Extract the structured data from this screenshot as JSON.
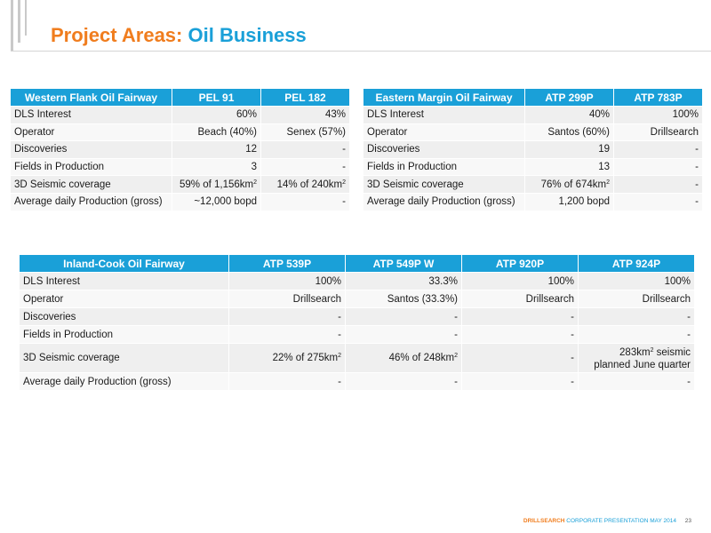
{
  "header": {
    "title_part1": "Project Areas:",
    "title_part2": "Oil Business"
  },
  "western": {
    "headers": [
      "Western Flank Oil Fairway",
      "PEL 91",
      "PEL 182"
    ],
    "rows": [
      {
        "label": "DLS Interest",
        "v1": "60%",
        "v2": "43%"
      },
      {
        "label": "Operator",
        "v1": "Beach (40%)",
        "v2": "Senex (57%)"
      },
      {
        "label": "Discoveries",
        "v1": "12",
        "v2": "-"
      },
      {
        "label": "Fields in Production",
        "v1": "3",
        "v2": "-"
      },
      {
        "label": "3D Seismic coverage",
        "v1": "59% of 1,156km",
        "v2": "14% of 240km"
      },
      {
        "label": "Average daily Production (gross)",
        "v1": "~12,000 bopd",
        "v2": "-"
      }
    ]
  },
  "eastern": {
    "headers": [
      "Eastern Margin Oil Fairway",
      "ATP 299P",
      "ATP 783P"
    ],
    "rows": [
      {
        "label": "DLS Interest",
        "v1": "40%",
        "v2": "100%"
      },
      {
        "label": "Operator",
        "v1": "Santos (60%)",
        "v2": "Drillsearch"
      },
      {
        "label": "Discoveries",
        "v1": "19",
        "v2": "-"
      },
      {
        "label": "Fields in Production",
        "v1": "13",
        "v2": "-"
      },
      {
        "label": "3D Seismic coverage",
        "v1": "76% of 674km",
        "v2": "-"
      },
      {
        "label": "Average daily Production (gross)",
        "v1": "1,200 bopd",
        "v2": "-"
      }
    ]
  },
  "inland": {
    "headers": [
      "Inland-Cook Oil Fairway",
      "ATP 539P",
      "ATP 549P W",
      "ATP 920P",
      "ATP 924P"
    ],
    "rows": [
      {
        "label": "DLS Interest",
        "v1": "100%",
        "v2": "33.3%",
        "v3": "100%",
        "v4": "100%"
      },
      {
        "label": "Operator",
        "v1": "Drillsearch",
        "v2": "Santos (33.3%)",
        "v3": "Drillsearch",
        "v4": "Drillsearch"
      },
      {
        "label": "Discoveries",
        "v1": "-",
        "v2": "-",
        "v3": "-",
        "v4": "-"
      },
      {
        "label": "Fields in Production",
        "v1": "-",
        "v2": "-",
        "v3": "-",
        "v4": "-"
      },
      {
        "label": "3D Seismic coverage",
        "v1": "22% of 275km",
        "v2": "46% of 248km",
        "v3": "-",
        "v4a": "283km",
        "v4b": " seismic",
        "v4c": "planned June quarter"
      },
      {
        "label": "Average daily Production (gross)",
        "v1": "-",
        "v2": "-",
        "v3": "-",
        "v4": "-"
      }
    ]
  },
  "superscript": "2",
  "footer": {
    "brand": "DRILLSEARCH",
    "text": "CORPORATE PRESENTATION MAY 2014",
    "page": "23"
  },
  "colors": {
    "accent_orange": "#f07d1e",
    "accent_blue": "#1aa0d8"
  }
}
